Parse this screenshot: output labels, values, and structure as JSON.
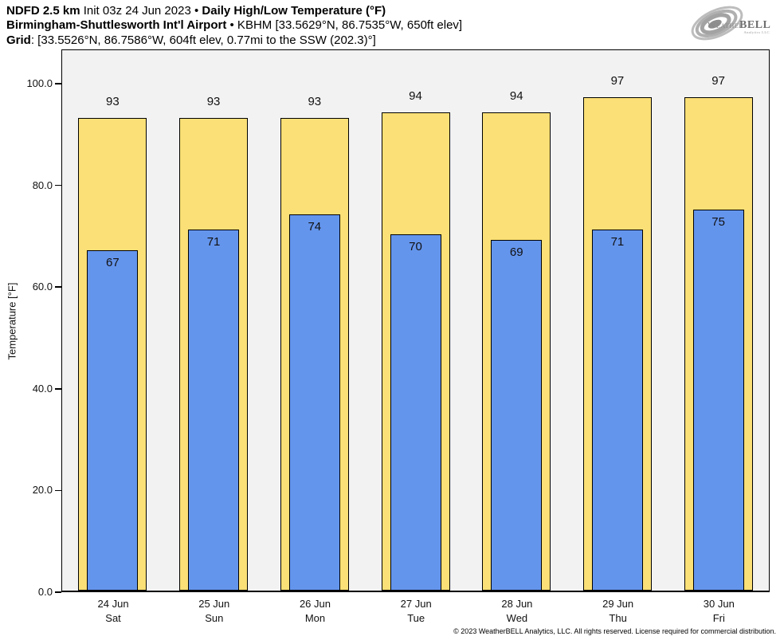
{
  "title": {
    "model": "NDFD 2.5 km",
    "init": "Init 03z 24 Jun 2023 •",
    "product": "Daily High/Low Temperature (°F)",
    "station": "Birmingham-Shuttlesworth Int'l Airport",
    "station_meta": "• KBHM [33.5629°N, 86.7535°W, 650ft elev]",
    "grid_label": "Grid",
    "grid_meta": ": [33.5526°N, 86.7586°W, 604ft elev, 0.77mi to the SSW (202.3)°]"
  },
  "logo": {
    "brand_weather": "Weather",
    "brand_bell": "BELL",
    "subtext": "Analytics LLC"
  },
  "chart_data": {
    "type": "bar",
    "title": "NDFD 2.5 km Daily High/Low Temperature (°F) — Birmingham-Shuttlesworth Int'l Airport (KBHM)",
    "categories": [
      "24 Jun",
      "25 Jun",
      "26 Jun",
      "27 Jun",
      "28 Jun",
      "29 Jun",
      "30 Jun"
    ],
    "weekdays": [
      "Sat",
      "Sun",
      "Mon",
      "Tue",
      "Wed",
      "Thu",
      "Fri"
    ],
    "series": [
      {
        "name": "High",
        "values": [
          93,
          93,
          93,
          94,
          94,
          97,
          97
        ],
        "color": "#FBE077"
      },
      {
        "name": "Low",
        "values": [
          67,
          71,
          74,
          70,
          69,
          71,
          75
        ],
        "color": "#6495ED"
      }
    ],
    "xlabel": "",
    "ylabel": "Temperature [°F]",
    "yticks": [
      0,
      20,
      40,
      60,
      80,
      100
    ],
    "ytick_labels": [
      "0.0",
      "20.0",
      "40.0",
      "60.0",
      "80.0",
      "100.0"
    ],
    "ylim": [
      0,
      107
    ],
    "grid": false,
    "legend": "none",
    "plot_background": "#f2f2f2",
    "bar_edge_color": "#000000"
  },
  "footer": {
    "copyright": "© 2023 WeatherBELL Analytics, LLC. All rights reserved. License required for commercial distribution."
  }
}
